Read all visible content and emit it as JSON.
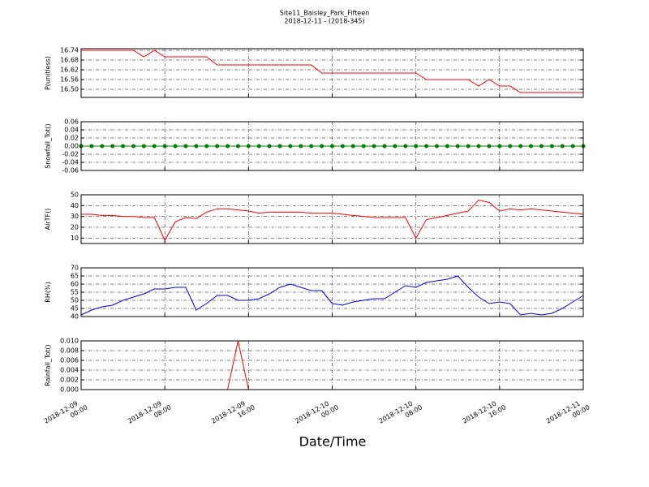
{
  "title": "Site11_Baisley_Park_Fifteen",
  "subtitle": "2018-12-11 - (2018-345)",
  "xlabel": "Date/Time",
  "xlim": [
    "2018-12-09 00:00",
    "2018-12-11 00:00"
  ],
  "xticks": [
    "2018-12-09 00:00",
    "2018-12-09 08:00",
    "2018-12-09 16:00",
    "2018-12-10 00:00",
    "2018-12-10 08:00",
    "2018-12-10 16:00",
    "2018-12-11 00:00"
  ],
  "x": [
    "2018-12-09 00:00",
    "2018-12-09 01:00",
    "2018-12-09 02:00",
    "2018-12-09 03:00",
    "2018-12-09 04:00",
    "2018-12-09 05:00",
    "2018-12-09 06:00",
    "2018-12-09 07:00",
    "2018-12-09 08:00",
    "2018-12-09 09:00",
    "2018-12-09 10:00",
    "2018-12-09 11:00",
    "2018-12-09 12:00",
    "2018-12-09 13:00",
    "2018-12-09 14:00",
    "2018-12-09 15:00",
    "2018-12-09 16:00",
    "2018-12-09 17:00",
    "2018-12-09 18:00",
    "2018-12-09 19:00",
    "2018-12-09 20:00",
    "2018-12-09 21:00",
    "2018-12-09 22:00",
    "2018-12-09 23:00",
    "2018-12-10 00:00",
    "2018-12-10 01:00",
    "2018-12-10 02:00",
    "2018-12-10 03:00",
    "2018-12-10 04:00",
    "2018-12-10 05:00",
    "2018-12-10 06:00",
    "2018-12-10 07:00",
    "2018-12-10 08:00",
    "2018-12-10 09:00",
    "2018-12-10 10:00",
    "2018-12-10 11:00",
    "2018-12-10 12:00",
    "2018-12-10 13:00",
    "2018-12-10 14:00",
    "2018-12-10 15:00",
    "2018-12-10 16:00",
    "2018-12-10 17:00",
    "2018-12-10 18:00",
    "2018-12-10 19:00",
    "2018-12-10 20:00",
    "2018-12-10 21:00",
    "2018-12-10 22:00",
    "2018-12-10 23:00",
    "2018-12-11 00:00"
  ],
  "chart_data": [
    {
      "type": "line",
      "ylabel": "P(unitless)",
      "ylim": [
        16.45,
        16.75
      ],
      "grid": true,
      "yticks": [
        {
          "value": 16.5,
          "label": "16.50"
        },
        16.56,
        16.62,
        16.68,
        16.74
      ],
      "series": [
        {
          "color": "#ff0000",
          "values": [
            16.74,
            16.74,
            16.74,
            16.74,
            16.74,
            16.74,
            16.7,
            16.74,
            16.7,
            16.7,
            16.7,
            16.7,
            16.7,
            16.65,
            16.65,
            16.65,
            16.65,
            16.65,
            16.65,
            16.65,
            16.65,
            16.65,
            16.65,
            16.6,
            16.6,
            16.6,
            16.6,
            16.6,
            16.6,
            16.6,
            16.6,
            16.6,
            16.6,
            16.56,
            16.56,
            16.56,
            16.56,
            16.56,
            16.52,
            16.56,
            16.52,
            16.52,
            16.48,
            16.48,
            16.48,
            16.48,
            16.48,
            16.48,
            16.48
          ]
        }
      ]
    },
    {
      "type": "line",
      "ylabel": "Snowfall_Tot()",
      "ylim": [
        -0.06,
        0.06
      ],
      "grid": true,
      "markers": true,
      "yticks": [
        -0.06,
        -0.04,
        -0.02,
        {
          "value": 0,
          "label": "0.00"
        },
        0.02,
        0.04,
        0.06
      ],
      "series": [
        {
          "color": "#008000",
          "values": [
            0,
            0,
            0,
            0,
            0,
            0,
            0,
            0,
            0,
            0,
            0,
            0,
            0,
            0,
            0,
            0,
            0,
            0,
            0,
            0,
            0,
            0,
            0,
            0,
            0,
            0,
            0,
            0,
            0,
            0,
            0,
            0,
            0,
            0,
            0,
            0,
            0,
            0,
            0,
            0,
            0,
            0,
            0,
            0,
            0,
            0,
            0,
            0,
            0
          ]
        }
      ]
    },
    {
      "type": "line",
      "ylabel": "AirTF()",
      "ylim": [
        5,
        50
      ],
      "grid": true,
      "yticks": [
        10,
        20,
        30,
        40,
        50
      ],
      "series": [
        {
          "color": "#ff0000",
          "values": [
            32,
            32,
            31,
            31,
            30,
            30,
            29,
            29,
            8,
            25,
            29,
            28,
            34,
            37,
            37,
            36,
            35,
            33,
            34,
            34,
            34,
            34,
            33,
            33,
            33,
            32,
            31,
            30,
            29,
            29,
            29,
            29,
            10,
            27,
            29,
            31,
            33,
            35,
            45,
            43,
            35,
            37,
            36,
            37,
            36,
            35,
            34,
            33,
            32
          ]
        }
      ]
    },
    {
      "type": "line",
      "ylabel": "RH(%)",
      "ylim": [
        40,
        70
      ],
      "grid": true,
      "yticks": [
        40,
        45,
        50,
        55,
        60,
        65,
        70
      ],
      "series": [
        {
          "color": "#0000ff",
          "values": [
            41,
            44,
            46,
            47,
            50,
            52,
            54,
            57,
            57,
            58,
            58,
            44,
            48,
            53,
            53,
            50,
            50,
            51,
            54,
            58,
            60,
            58,
            56,
            56,
            48,
            47,
            49,
            50,
            51,
            51,
            55,
            59,
            58,
            61,
            62,
            63,
            65,
            58,
            52,
            48,
            49,
            48,
            41,
            42,
            41,
            42,
            45,
            49,
            53
          ]
        }
      ]
    },
    {
      "type": "line",
      "ylabel": "Rainfall_Tot()",
      "ylim": [
        0,
        0.01
      ],
      "grid": true,
      "yticks": [
        {
          "value": 0,
          "label": "0.000"
        },
        0.002,
        0.004,
        0.006,
        0.008,
        {
          "value": 0.01,
          "label": "0.010"
        }
      ],
      "series": [
        {
          "color": "#ff0000",
          "values": [
            0,
            0,
            0,
            0,
            0,
            0,
            0,
            0,
            0,
            0,
            0,
            0,
            0,
            0,
            0,
            0.01,
            0,
            0,
            0,
            0,
            0,
            0,
            0,
            0,
            0,
            0,
            0,
            0,
            0,
            0,
            0,
            0,
            0,
            0,
            0,
            0,
            0,
            0,
            0,
            0,
            0,
            0,
            0,
            0,
            0,
            0,
            0,
            0,
            0
          ]
        }
      ]
    }
  ]
}
